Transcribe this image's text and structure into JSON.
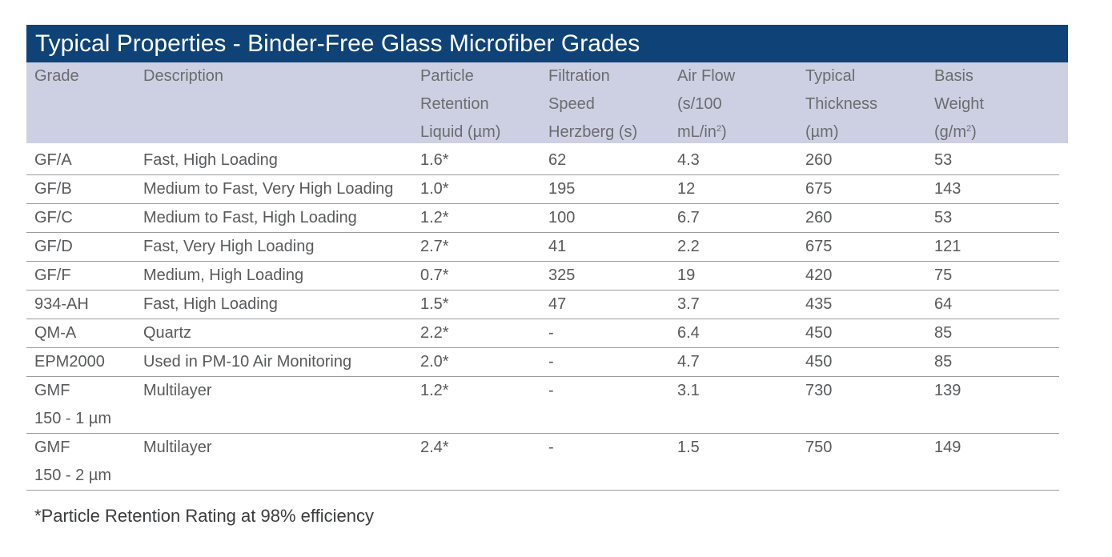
{
  "title": "Typical Properties - Binder-Free Glass Microfiber Grades",
  "headers": {
    "grade": [
      "Grade"
    ],
    "description": [
      "Description"
    ],
    "particle_retention": [
      "Particle",
      "Retention",
      "Liquid (µm)"
    ],
    "filtration_speed": [
      "Filtration",
      "Speed",
      "Herzberg (s)"
    ],
    "air_flow": [
      "Air Flow",
      "(s/100",
      "mL/in",
      "2",
      ")"
    ],
    "thickness": [
      "Typical",
      "Thickness",
      "(µm)"
    ],
    "basis_weight": [
      "Basis",
      "Weight",
      "(g/m",
      "2",
      ")"
    ]
  },
  "rows": [
    {
      "grade": "GF/A",
      "grade2": "",
      "description": "Fast, High Loading",
      "retention": "1.6*",
      "speed": "62",
      "air_flow": "4.3",
      "thickness": "260",
      "basis_weight": "53"
    },
    {
      "grade": "GF/B",
      "grade2": "",
      "description": "Medium to Fast, Very High Loading",
      "retention": "1.0*",
      "speed": "195",
      "air_flow": "12",
      "thickness": "675",
      "basis_weight": "143"
    },
    {
      "grade": "GF/C",
      "grade2": "",
      "description": "Medium to Fast, High Loading",
      "retention": "1.2*",
      "speed": "100",
      "air_flow": "6.7",
      "thickness": "260",
      "basis_weight": "53"
    },
    {
      "grade": "GF/D",
      "grade2": "",
      "description": "Fast, Very High Loading",
      "retention": "2.7*",
      "speed": "41",
      "air_flow": "2.2",
      "thickness": "675",
      "basis_weight": "121"
    },
    {
      "grade": "GF/F",
      "grade2": "",
      "description": "Medium, High Loading",
      "retention": "0.7*",
      "speed": "325",
      "air_flow": "19",
      "thickness": "420",
      "basis_weight": "75"
    },
    {
      "grade": "934-AH",
      "grade2": "",
      "description": "Fast, High Loading",
      "retention": "1.5*",
      "speed": "47",
      "air_flow": "3.7",
      "thickness": "435",
      "basis_weight": "64"
    },
    {
      "grade": "QM-A",
      "grade2": "",
      "description": "Quartz",
      "retention": "2.2*",
      "speed": "-",
      "air_flow": "6.4",
      "thickness": "450",
      "basis_weight": "85"
    },
    {
      "grade": "EPM2000",
      "grade2": "",
      "description": "Used in PM-10 Air Monitoring",
      "retention": "2.0*",
      "speed": "-",
      "air_flow": "4.7",
      "thickness": "450",
      "basis_weight": "85"
    },
    {
      "grade": "GMF",
      "grade2": "150 - 1 µm",
      "description": "Multilayer",
      "retention": "1.2*",
      "speed": "-",
      "air_flow": "3.1",
      "thickness": "730",
      "basis_weight": "139"
    },
    {
      "grade": "GMF",
      "grade2": "150 - 2 µm",
      "description": "Multilayer",
      "retention": "2.4*",
      "speed": "-",
      "air_flow": "1.5",
      "thickness": "750",
      "basis_weight": "149"
    }
  ],
  "footnote": "*Particle Retention Rating at 98% efficiency",
  "colors": {
    "title_bg": "#0f4378",
    "header_bg": "#cdd0e3",
    "text": "#585a5c"
  }
}
